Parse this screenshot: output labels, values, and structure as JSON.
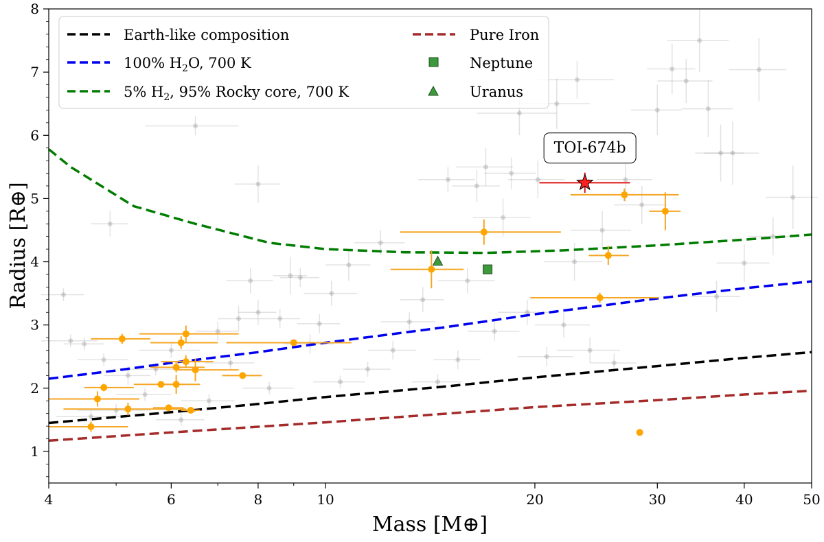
{
  "chart_data": {
    "type": "scatter",
    "xscale": "log",
    "xlabel": "Mass [M⊕]",
    "ylabel": "Radius [R⊕]",
    "xlim": [
      4,
      50
    ],
    "ylim": [
      0.5,
      8
    ],
    "xticks": [
      {
        "v": 4,
        "label": "4"
      },
      {
        "v": 6,
        "label": "6"
      },
      {
        "v": 8,
        "label": "8"
      },
      {
        "v": 10,
        "label": "10"
      },
      {
        "v": 20,
        "label": "20"
      },
      {
        "v": 30,
        "label": "30"
      },
      {
        "v": 40,
        "label": "40"
      },
      {
        "v": 50,
        "label": "50"
      }
    ],
    "yticks": [
      {
        "v": 1,
        "label": "1"
      },
      {
        "v": 2,
        "label": "2"
      },
      {
        "v": 3,
        "label": "3"
      },
      {
        "v": 4,
        "label": "4"
      },
      {
        "v": 5,
        "label": "5"
      },
      {
        "v": 6,
        "label": "6"
      },
      {
        "v": 7,
        "label": "7"
      },
      {
        "v": 8,
        "label": "8"
      }
    ],
    "legend": {
      "location": "top-left",
      "entries": [
        {
          "label": "Earth-like composition",
          "color": "#000000",
          "marker": "dashed-line"
        },
        {
          "label": "100% H",
          "sub": "2",
          "label_rest": "O, 700 K",
          "color": "#0000ee",
          "marker": "dashed-line"
        },
        {
          "label": "5% H",
          "sub": "2",
          "label_rest": ", 95% Rocky core, 700 K",
          "color": "#007d00",
          "marker": "dashed-line"
        },
        {
          "label": "Pure Iron",
          "color": "#a52a2a",
          "marker": "dashed-line"
        },
        {
          "label": "Neptune",
          "color": "#3c9a3c",
          "marker": "square"
        },
        {
          "label": "Uranus",
          "color": "#3c9a3c",
          "marker": "triangle"
        }
      ]
    },
    "annotation": {
      "text": "TOI-674b",
      "x": 24,
      "y": 5.8
    },
    "models": [
      {
        "name": "Earth-like composition",
        "color": "#000000",
        "x": [
          4,
          6,
          8,
          10,
          15,
          20,
          30,
          40,
          50
        ],
        "y": [
          1.45,
          1.62,
          1.75,
          1.86,
          2.03,
          2.17,
          2.35,
          2.48,
          2.57
        ]
      },
      {
        "name": "100% H2O, 700 K",
        "color": "#0000ee",
        "x": [
          4,
          5,
          6,
          8,
          10,
          15,
          20,
          30,
          40,
          50
        ],
        "y": [
          2.15,
          2.28,
          2.4,
          2.57,
          2.72,
          2.97,
          3.17,
          3.42,
          3.58,
          3.69
        ]
      },
      {
        "name": "5% H2, 95% Rocky core, 700 K",
        "color": "#007d00",
        "x": [
          4,
          4.3,
          5.3,
          6.5,
          8.3,
          10,
          13,
          17,
          22,
          30,
          40,
          50
        ],
        "y": [
          5.78,
          5.5,
          4.88,
          4.6,
          4.3,
          4.2,
          4.15,
          4.14,
          4.18,
          4.26,
          4.35,
          4.43
        ]
      },
      {
        "name": "Pure Iron",
        "color": "#a52a2a",
        "x": [
          4,
          6,
          8,
          10,
          15,
          20,
          30,
          40,
          50
        ],
        "y": [
          1.17,
          1.3,
          1.39,
          1.46,
          1.6,
          1.7,
          1.81,
          1.9,
          1.96
        ]
      }
    ],
    "solar_system": [
      {
        "name": "Neptune",
        "x": 17.1,
        "y": 3.88,
        "marker": "square",
        "color": "#3c9a3c"
      },
      {
        "name": "Uranus",
        "x": 14.5,
        "y": 4.01,
        "marker": "triangle",
        "color": "#3c9a3c"
      }
    ],
    "highlight": {
      "name": "TOI-674b",
      "x": 23.6,
      "y": 5.25,
      "xerr": [
        3.3,
        3.8
      ],
      "yerr": [
        0.16,
        0.16
      ],
      "marker": "star",
      "color": "#ff2020",
      "errcolor": "#e01010"
    },
    "orange_planets": [
      {
        "x": 4.6,
        "y": 1.39,
        "xerr": [
          0.6,
          0.6
        ],
        "yerr": [
          0.08,
          0.08
        ]
      },
      {
        "x": 4.7,
        "y": 1.83,
        "xerr": [
          0.7,
          0.7
        ],
        "yerr": [
          0.12,
          0.12
        ]
      },
      {
        "x": 4.8,
        "y": 2.01,
        "xerr": [
          0.3,
          0.5
        ],
        "yerr": [
          0.06,
          0.06
        ]
      },
      {
        "x": 5.1,
        "y": 2.78,
        "xerr": [
          0.5,
          0.5
        ],
        "yerr": [
          0.08,
          0.08
        ]
      },
      {
        "x": 5.2,
        "y": 1.67,
        "xerr": [
          1.0,
          1.1
        ],
        "yerr": [
          0.1,
          0.1
        ]
      },
      {
        "x": 5.8,
        "y": 2.06,
        "xerr": [
          0.5,
          0.5
        ],
        "yerr": [
          0.05,
          0.05
        ]
      },
      {
        "x": 5.95,
        "y": 1.69,
        "xerr": [
          0.3,
          0.3
        ],
        "yerr": [
          0.05,
          0.05
        ]
      },
      {
        "x": 6.1,
        "y": 2.06,
        "xerr": [
          0.3,
          0.5
        ],
        "yerr": [
          0.15,
          0.15
        ]
      },
      {
        "x": 6.2,
        "y": 2.72,
        "xerr": [
          0.6,
          0.8
        ],
        "yerr": [
          0.1,
          0.1
        ]
      },
      {
        "x": 6.3,
        "y": 2.86,
        "xerr": [
          0.9,
          1.2
        ],
        "yerr": [
          0.13,
          0.13
        ]
      },
      {
        "x": 6.3,
        "y": 2.42,
        "xerr": [
          0.5,
          0.6
        ],
        "yerr": [
          0.1,
          0.1
        ]
      },
      {
        "x": 6.4,
        "y": 1.65,
        "xerr": [
          0.2,
          0.2
        ],
        "yerr": [
          0.05,
          0.05
        ]
      },
      {
        "x": 6.5,
        "y": 2.29,
        "xerr": [
          0.4,
          1.0
        ],
        "yerr": [
          0.18,
          0.18
        ]
      },
      {
        "x": 6.1,
        "y": 2.33,
        "xerr": [
          0.5,
          0.6
        ],
        "yerr": [
          0.08,
          0.08
        ]
      },
      {
        "x": 7.6,
        "y": 2.2,
        "xerr": [
          0.5,
          0.5
        ],
        "yerr": [
          0.05,
          0.05
        ]
      },
      {
        "x": 9.0,
        "y": 2.72,
        "xerr": [
          1.8,
          1.9
        ],
        "yerr": [
          0.05,
          0.05
        ]
      },
      {
        "x": 14.2,
        "y": 3.88,
        "xerr": [
          1.8,
          1.6
        ],
        "yerr": [
          0.3,
          0.3
        ]
      },
      {
        "x": 16.9,
        "y": 4.47,
        "xerr": [
          4.1,
          4.9
        ],
        "yerr": [
          0.2,
          0.2
        ]
      },
      {
        "x": 24.8,
        "y": 3.43,
        "xerr": [
          5.1,
          5.3
        ],
        "yerr": [
          0.08,
          0.08
        ]
      },
      {
        "x": 25.5,
        "y": 4.1,
        "xerr": [
          1.6,
          1.8
        ],
        "yerr": [
          0.15,
          0.15
        ]
      },
      {
        "x": 26.9,
        "y": 5.06,
        "xerr": [
          4.4,
          5.3
        ],
        "yerr": [
          0.1,
          0.1
        ]
      },
      {
        "x": 28.3,
        "y": 1.3,
        "xerr": [
          0.3,
          0.3
        ],
        "yerr": [
          0.03,
          0.03
        ]
      },
      {
        "x": 30.8,
        "y": 4.8,
        "xerr": [
          1.6,
          1.6
        ],
        "yerr": [
          0.3,
          0.3
        ]
      }
    ],
    "background_planets": [
      [
        4.2,
        3.48,
        0.3,
        0.1
      ],
      [
        4.3,
        2.75,
        0.4,
        0.1
      ],
      [
        4.5,
        2.7,
        0.3,
        0.1
      ],
      [
        4.6,
        1.55,
        0.5,
        0.1
      ],
      [
        4.8,
        2.45,
        0.4,
        0.1
      ],
      [
        4.9,
        4.6,
        0.3,
        0.2
      ],
      [
        5.0,
        1.65,
        0.6,
        0.1
      ],
      [
        5.2,
        2.2,
        0.4,
        0.15
      ],
      [
        5.5,
        1.9,
        0.5,
        0.1
      ],
      [
        5.7,
        2.3,
        0.5,
        0.1
      ],
      [
        6.0,
        2.6,
        0.6,
        0.12
      ],
      [
        6.2,
        1.5,
        0.5,
        0.1
      ],
      [
        6.5,
        6.15,
        1.0,
        0.15
      ],
      [
        6.8,
        1.8,
        0.6,
        0.1
      ],
      [
        7.0,
        2.9,
        0.5,
        0.15
      ],
      [
        7.3,
        2.4,
        0.6,
        0.1
      ],
      [
        7.5,
        3.1,
        0.5,
        0.2
      ],
      [
        7.8,
        3.7,
        0.6,
        0.2
      ],
      [
        8.0,
        5.23,
        0.6,
        0.3
      ],
      [
        8.0,
        3.2,
        0.5,
        0.2
      ],
      [
        8.3,
        2.0,
        0.7,
        0.1
      ],
      [
        8.6,
        3.1,
        0.6,
        0.15
      ],
      [
        8.9,
        3.78,
        0.5,
        0.3
      ],
      [
        9.2,
        3.75,
        0.6,
        0.15
      ],
      [
        9.5,
        2.7,
        0.8,
        0.15
      ],
      [
        9.8,
        3.02,
        0.7,
        0.15
      ],
      [
        10.2,
        3.5,
        0.9,
        0.2
      ],
      [
        10.5,
        2.1,
        0.9,
        0.1
      ],
      [
        10.8,
        3.95,
        0.8,
        0.25
      ],
      [
        11.5,
        2.3,
        0.9,
        0.12
      ],
      [
        12.0,
        4.3,
        1.0,
        0.2
      ],
      [
        12.5,
        2.6,
        1.0,
        0.15
      ],
      [
        13.2,
        3.05,
        1.2,
        0.15
      ],
      [
        13.8,
        3.4,
        1.0,
        0.2
      ],
      [
        14.5,
        2.1,
        1.2,
        0.12
      ],
      [
        15.0,
        5.3,
        1.4,
        0.2
      ],
      [
        15.5,
        2.45,
        1.2,
        0.15
      ],
      [
        16.0,
        3.7,
        1.5,
        0.2
      ],
      [
        16.5,
        5.2,
        1.3,
        0.25
      ],
      [
        17.0,
        5.5,
        1.6,
        0.3
      ],
      [
        17.5,
        2.9,
        1.5,
        0.15
      ],
      [
        18.0,
        4.7,
        1.7,
        0.3
      ],
      [
        18.5,
        5.4,
        1.6,
        0.25
      ],
      [
        19.0,
        6.35,
        2.5,
        0.35
      ],
      [
        19.5,
        3.2,
        1.8,
        0.2
      ],
      [
        20.2,
        5.3,
        1.9,
        0.3
      ],
      [
        20.8,
        2.5,
        1.9,
        0.15
      ],
      [
        21.5,
        6.5,
        2.5,
        0.4
      ],
      [
        22.0,
        3.0,
        2.0,
        0.2
      ],
      [
        22.8,
        4.0,
        2.2,
        0.3
      ],
      [
        23.0,
        6.88,
        3.0,
        0.3
      ],
      [
        24.0,
        2.6,
        2.5,
        0.2
      ],
      [
        25.0,
        4.5,
        2.5,
        0.3
      ],
      [
        26.0,
        2.4,
        2.0,
        0.15
      ],
      [
        27.0,
        5.3,
        2.5,
        0.35
      ],
      [
        28.5,
        4.9,
        2.5,
        0.3
      ],
      [
        30.0,
        6.4,
        2.5,
        0.4
      ],
      [
        31.5,
        7.05,
        2.5,
        0.4
      ],
      [
        33.0,
        6.86,
        3.0,
        0.35
      ],
      [
        34.5,
        7.5,
        3.5,
        0.5
      ],
      [
        35.5,
        6.42,
        3.0,
        0.45
      ],
      [
        37.0,
        5.72,
        3.0,
        0.45
      ],
      [
        38.5,
        5.72,
        3.5,
        0.5
      ],
      [
        40.0,
        3.98,
        3.5,
        0.3
      ],
      [
        42.0,
        7.04,
        4.0,
        0.5
      ],
      [
        44.0,
        4.4,
        3.5,
        0.3
      ],
      [
        47.0,
        5.02,
        4.0,
        0.5
      ],
      [
        36.5,
        3.45,
        3.0,
        0.25
      ]
    ]
  }
}
